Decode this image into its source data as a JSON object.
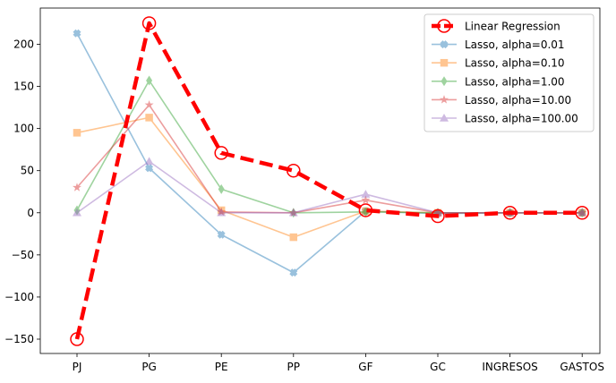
{
  "chart_data": {
    "type": "line",
    "title": "",
    "xlabel": "",
    "ylabel": "",
    "categories": [
      "PJ",
      "PG",
      "PE",
      "PP",
      "GF",
      "GC",
      "INGRESOS",
      "GASTOS"
    ],
    "ylim": [
      -167,
      243
    ],
    "yticks": [
      -150,
      -100,
      -50,
      0,
      50,
      100,
      150,
      200
    ],
    "ytick_labels": [
      "−150",
      "−100",
      "−50",
      "0",
      "50",
      "100",
      "150",
      "200"
    ],
    "grid": false,
    "legend_position": "top-right",
    "series": [
      {
        "name": "Lasso, alpha=0.01",
        "values": [
          213,
          53,
          -26,
          -71,
          2,
          -1,
          0,
          0
        ],
        "color": "#1f77b4",
        "marker": "x-filled"
      },
      {
        "name": "Lasso, alpha=0.10",
        "values": [
          95,
          113,
          3,
          -29,
          2,
          0,
          0,
          0
        ],
        "color": "#ff7f0e",
        "marker": "square"
      },
      {
        "name": "Lasso, alpha=1.00",
        "values": [
          3,
          157,
          28,
          0,
          1,
          0,
          0,
          0
        ],
        "color": "#2ca02c",
        "marker": "diamond"
      },
      {
        "name": "Lasso, alpha=10.00",
        "values": [
          30,
          128,
          1,
          0,
          15,
          0,
          0,
          0
        ],
        "color": "#d62728",
        "marker": "star"
      },
      {
        "name": "Lasso, alpha=100.00",
        "values": [
          0,
          61,
          0,
          0,
          22,
          0,
          0,
          0
        ],
        "color": "#9467bd",
        "marker": "triangle"
      },
      {
        "name": "Linear Regression",
        "values": [
          -150,
          225,
          71,
          50,
          3,
          -4,
          0,
          0
        ],
        "color": "#ff0000",
        "marker": "circle-open",
        "style": "dashed"
      }
    ],
    "legend_order": [
      "Linear Regression",
      "Lasso, alpha=0.01",
      "Lasso, alpha=0.10",
      "Lasso, alpha=1.00",
      "Lasso, alpha=10.00",
      "Lasso, alpha=100.00"
    ]
  }
}
